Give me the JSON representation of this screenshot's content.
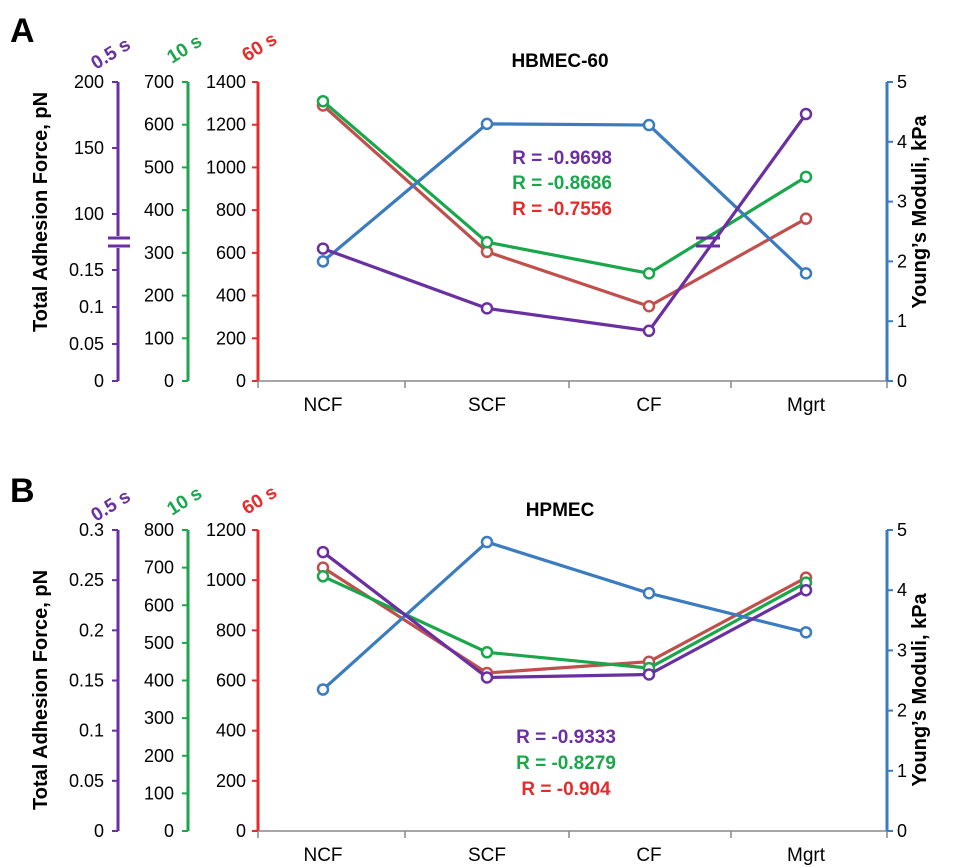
{
  "colors": {
    "purple": "#6a2fa0",
    "green": "#1aa64a",
    "red": "#e52b2b",
    "salmon": "#c0504d",
    "blue": "#3b7bbf",
    "black": "#000000"
  },
  "chart_data": [
    {
      "type": "line",
      "panel_label": "A",
      "title": "HBMEC-60",
      "categories": [
        "NCF",
        "SCF",
        "CF",
        "Mgrt"
      ],
      "left_axes": [
        {
          "time_label": "0.5 s",
          "color": "purple",
          "ticks": [
            "0",
            "0.05",
            "0.1",
            "0.15",
            "100",
            "150",
            "200"
          ],
          "broken": true
        },
        {
          "time_label": "10 s",
          "color": "green",
          "ticks": [
            "0",
            "100",
            "200",
            "300",
            "400",
            "500",
            "600",
            "700"
          ],
          "range": [
            0,
            700
          ]
        },
        {
          "time_label": "60 s",
          "color": "red",
          "ticks": [
            "0",
            "200",
            "400",
            "600",
            "800",
            "1000",
            "1200",
            "1400"
          ],
          "range": [
            0,
            1400
          ]
        }
      ],
      "ylabel_left": "Total Adhesion Force, pN",
      "ylabel_right": "Young’s Moduli, kPa",
      "right_axis": {
        "ticks": [
          "0",
          "1",
          "2",
          "3",
          "4",
          "5"
        ],
        "range": [
          0,
          5
        ]
      },
      "series": [
        {
          "name": "0.5 s",
          "color": "purple",
          "values": [
            620,
            340,
            235,
            1250
          ],
          "scale": "pixel-equivalent of 60 s axis (broken axis)"
        },
        {
          "name": "10 s",
          "color": "green",
          "values": [
            655,
            325,
            252,
            478
          ],
          "axis": "10 s"
        },
        {
          "name": "60 s",
          "color": "salmon",
          "values": [
            1290,
            605,
            350,
            760
          ],
          "axis": "60 s"
        },
        {
          "color": "blue",
          "values": [
            2.0,
            4.3,
            4.28,
            1.8
          ],
          "axis": "right"
        }
      ],
      "annotations": [
        {
          "text": "R = -0.9698",
          "color": "purple"
        },
        {
          "text": "R = -0.8686",
          "color": "green"
        },
        {
          "text": "R = -0.7556",
          "color": "red"
        }
      ]
    },
    {
      "type": "line",
      "panel_label": "B",
      "title": "HPMEC",
      "categories": [
        "NCF",
        "SCF",
        "CF",
        "Mgrt"
      ],
      "left_axes": [
        {
          "time_label": "0.5 s",
          "color": "purple",
          "ticks": [
            "0",
            "0.05",
            "0.1",
            "0.15",
            "0.2",
            "0.25",
            "0.3"
          ],
          "range": [
            0,
            0.3
          ]
        },
        {
          "time_label": "10 s",
          "color": "green",
          "ticks": [
            "0",
            "100",
            "200",
            "300",
            "400",
            "500",
            "600",
            "700",
            "800"
          ],
          "range": [
            0,
            800
          ]
        },
        {
          "time_label": "60 s",
          "color": "red",
          "ticks": [
            "0",
            "200",
            "400",
            "600",
            "800",
            "1000",
            "1200"
          ],
          "range": [
            0,
            1200
          ]
        }
      ],
      "ylabel_left": "Total Adhesion Force, pN",
      "ylabel_right": "Young’s Moduli, kPa",
      "right_axis": {
        "ticks": [
          "0",
          "1",
          "2",
          "3",
          "4",
          "5"
        ],
        "range": [
          0,
          5
        ]
      },
      "series": [
        {
          "name": "0.5 s",
          "color": "purple",
          "values": [
            0.278,
            0.153,
            0.156,
            0.24
          ],
          "axis": "0.5 s"
        },
        {
          "name": "10 s",
          "color": "green",
          "values": [
            677,
            475,
            433,
            660
          ],
          "axis": "10 s"
        },
        {
          "name": "60 s",
          "color": "salmon",
          "values": [
            1050,
            630,
            675,
            1010
          ],
          "axis": "60 s"
        },
        {
          "color": "blue",
          "values": [
            2.35,
            4.8,
            3.95,
            3.3
          ],
          "axis": "right"
        }
      ],
      "annotations": [
        {
          "text": "R = -0.9333",
          "color": "purple"
        },
        {
          "text": "R = -0.8279",
          "color": "green"
        },
        {
          "text": "R = -0.904",
          "color": "red"
        }
      ]
    }
  ]
}
